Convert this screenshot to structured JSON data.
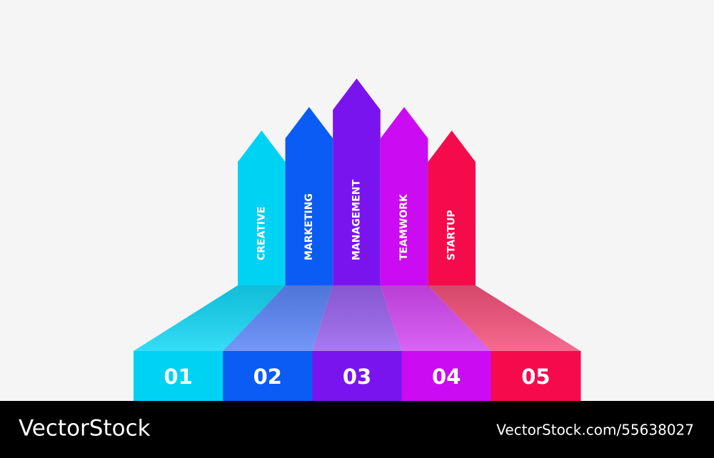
{
  "items": [
    {
      "number": "01",
      "label": "CREATIVE"
    },
    {
      "number": "02",
      "label": "MARKETING"
    },
    {
      "number": "03",
      "label": "MANAGEMENT"
    },
    {
      "number": "04",
      "label": "TEAMWORK"
    },
    {
      "number": "05",
      "label": "STARTUP"
    }
  ],
  "footer": {
    "brand": "VectorStock",
    "id": "VectorStock.com/55638027"
  }
}
